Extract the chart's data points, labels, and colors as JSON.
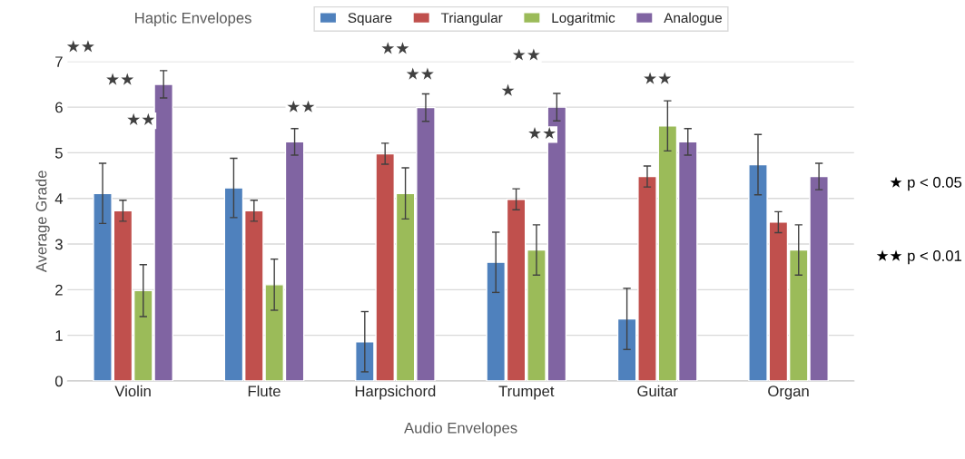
{
  "chart_data": {
    "type": "bar",
    "xlabel": "Audio Envelopes",
    "ylabel": "Average Grade",
    "legend_title": "Haptic Envelopes",
    "categories": [
      "Violin",
      "Flute",
      "Harpsichord",
      "Trumpet",
      "Guitar",
      "Organ"
    ],
    "series": [
      {
        "name": "Square",
        "color": "#4f81bd",
        "values": [
          4.11,
          4.23,
          0.86,
          2.6,
          1.36,
          4.74
        ],
        "errors": [
          0.66,
          0.65,
          0.66,
          0.66,
          0.67,
          0.66
        ]
      },
      {
        "name": "Triangular",
        "color": "#c0504d",
        "values": [
          3.73,
          3.73,
          4.98,
          3.98,
          4.48,
          3.48
        ],
        "errors": [
          0.23,
          0.23,
          0.23,
          0.23,
          0.23,
          0.23
        ]
      },
      {
        "name": "Logaritmic",
        "color": "#9bbb59",
        "values": [
          1.98,
          2.11,
          4.11,
          2.87,
          5.59,
          2.87
        ],
        "errors": [
          0.57,
          0.56,
          0.56,
          0.55,
          0.55,
          0.55
        ]
      },
      {
        "name": "Analogue",
        "color": "#8064a2",
        "values": [
          6.5,
          5.24,
          5.99,
          6.0,
          5.24,
          4.48
        ],
        "errors": [
          0.3,
          0.29,
          0.3,
          0.3,
          0.29,
          0.29
        ]
      }
    ],
    "ylim": [
      0,
      7
    ],
    "yticks": [
      0,
      1,
      2,
      3,
      4,
      5,
      6,
      7
    ],
    "grid": "y",
    "legend": "top",
    "annotations": [
      "★★",
      "★★",
      "★★",
      "★★",
      "★★",
      "★★",
      "★★",
      "★",
      "★★",
      "★★",
      "★ p < 0.05",
      "★★ p < 0.01"
    ]
  }
}
